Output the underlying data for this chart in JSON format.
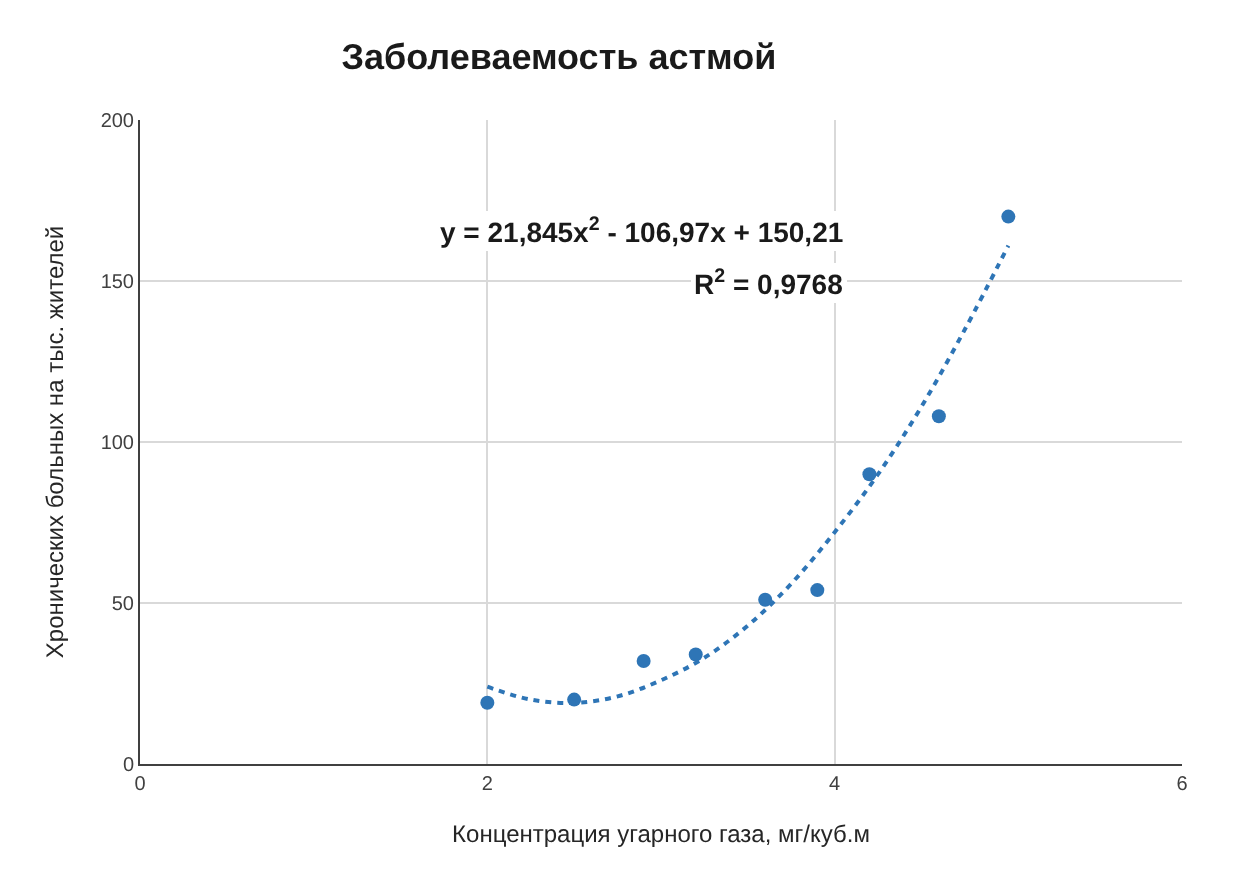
{
  "chart_data": {
    "type": "scatter",
    "title": "Заболеваемость астмой",
    "xlabel": "Концентрация угарного газа, мг/куб.м",
    "ylabel": "Хронических больных на тыс. жителей",
    "series": [
      {
        "color": "#2e75b6",
        "marker": "circle",
        "x": [
          2,
          2.5,
          2.9,
          3.2,
          3.6,
          3.9,
          4.2,
          4.6,
          5
        ],
        "values": [
          19,
          20,
          32,
          34,
          51,
          54,
          90,
          108,
          170
        ]
      },
      {
        "type": "line",
        "color": "#2e75b6",
        "line_style": "dotted",
        "marker": "none",
        "x": [
          2,
          2.25,
          2.5,
          2.75,
          3,
          3.25,
          3.5,
          3.75,
          4,
          4.25,
          4.5,
          4.75,
          5
        ],
        "values": [
          24,
          20,
          19,
          21,
          26,
          33,
          43,
          56,
          72,
          90,
          111,
          135,
          161
        ]
      }
    ],
    "annotations": [
      "y = 21,845x$^{2}$ - 106,97x + 150,21",
      "R$^{2}$ = 0,9768"
    ],
    "xlim": [
      0,
      6
    ],
    "xticks": [
      0,
      2,
      4,
      6
    ],
    "ylim": [
      0,
      200
    ],
    "yticks": [
      0,
      50,
      100,
      150,
      200
    ],
    "grid": true,
    "legend": false
  }
}
